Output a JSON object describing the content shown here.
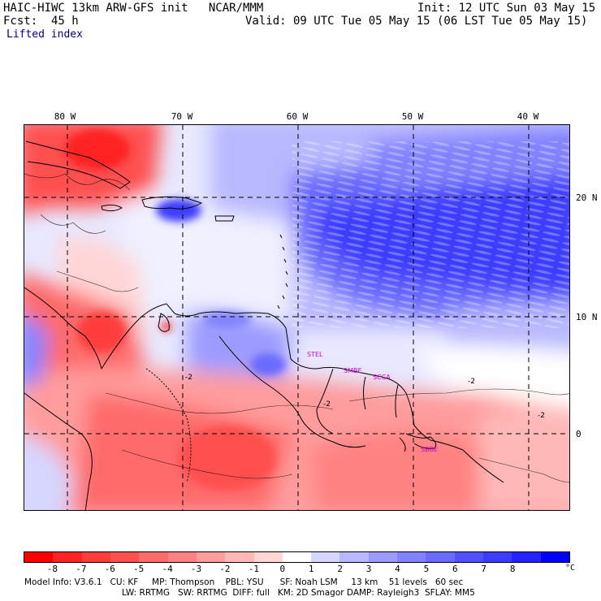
{
  "header": {
    "title_left": "HAIC-HIWC 13km ARW-GFS init   NCAR/MMM",
    "init": "Init: 12 UTC Sun 03 May 15",
    "fcst": "Fcst:  45 h",
    "valid": "Valid: 09 UTC Tue 05 May 15 (06 LST Tue 05 May 15)",
    "field": "Lifted index"
  },
  "axes": {
    "lon_labels": [
      "80 W",
      "70 W",
      "60 W",
      "50 W",
      "40 W"
    ],
    "lat_labels": [
      "20 N",
      "10 N",
      "0"
    ]
  },
  "contour_labels": [
    "-2",
    "-2",
    "-2",
    "-2"
  ],
  "stations": [
    "STEL",
    "SMBE",
    "SCCA",
    "SBBE"
  ],
  "colorbar": {
    "ticks": [
      "-8",
      "-7",
      "-6",
      "-5",
      "-4",
      "-3",
      "-2",
      "-1",
      "0",
      "1",
      "2",
      "3",
      "4",
      "5",
      "6",
      "7",
      "8"
    ],
    "unit": "°C",
    "colors": [
      "#ff0000",
      "#ff2323",
      "#ff3c3c",
      "#ff5050",
      "#ff6a6a",
      "#ff8282",
      "#ff9c9c",
      "#ffb8b8",
      "#ffd6d6",
      "#ffffff",
      "#d6d6ff",
      "#b8b8ff",
      "#9c9cff",
      "#8282ff",
      "#6a6aff",
      "#5050ff",
      "#3c3cff",
      "#2323ff",
      "#0000ff"
    ]
  },
  "footer": {
    "line1": "Model Info: V3.6.1   CU: KF     MP: Thompson    PBL: YSU      SF: Noah LSM     13 km    51 levels   60 sec",
    "line2": "LW: RRTMG   SW: RRTMG  DIFF: full   KM: 2D Smagor DAMP: Rayleigh3  SFLAY: MM5"
  }
}
